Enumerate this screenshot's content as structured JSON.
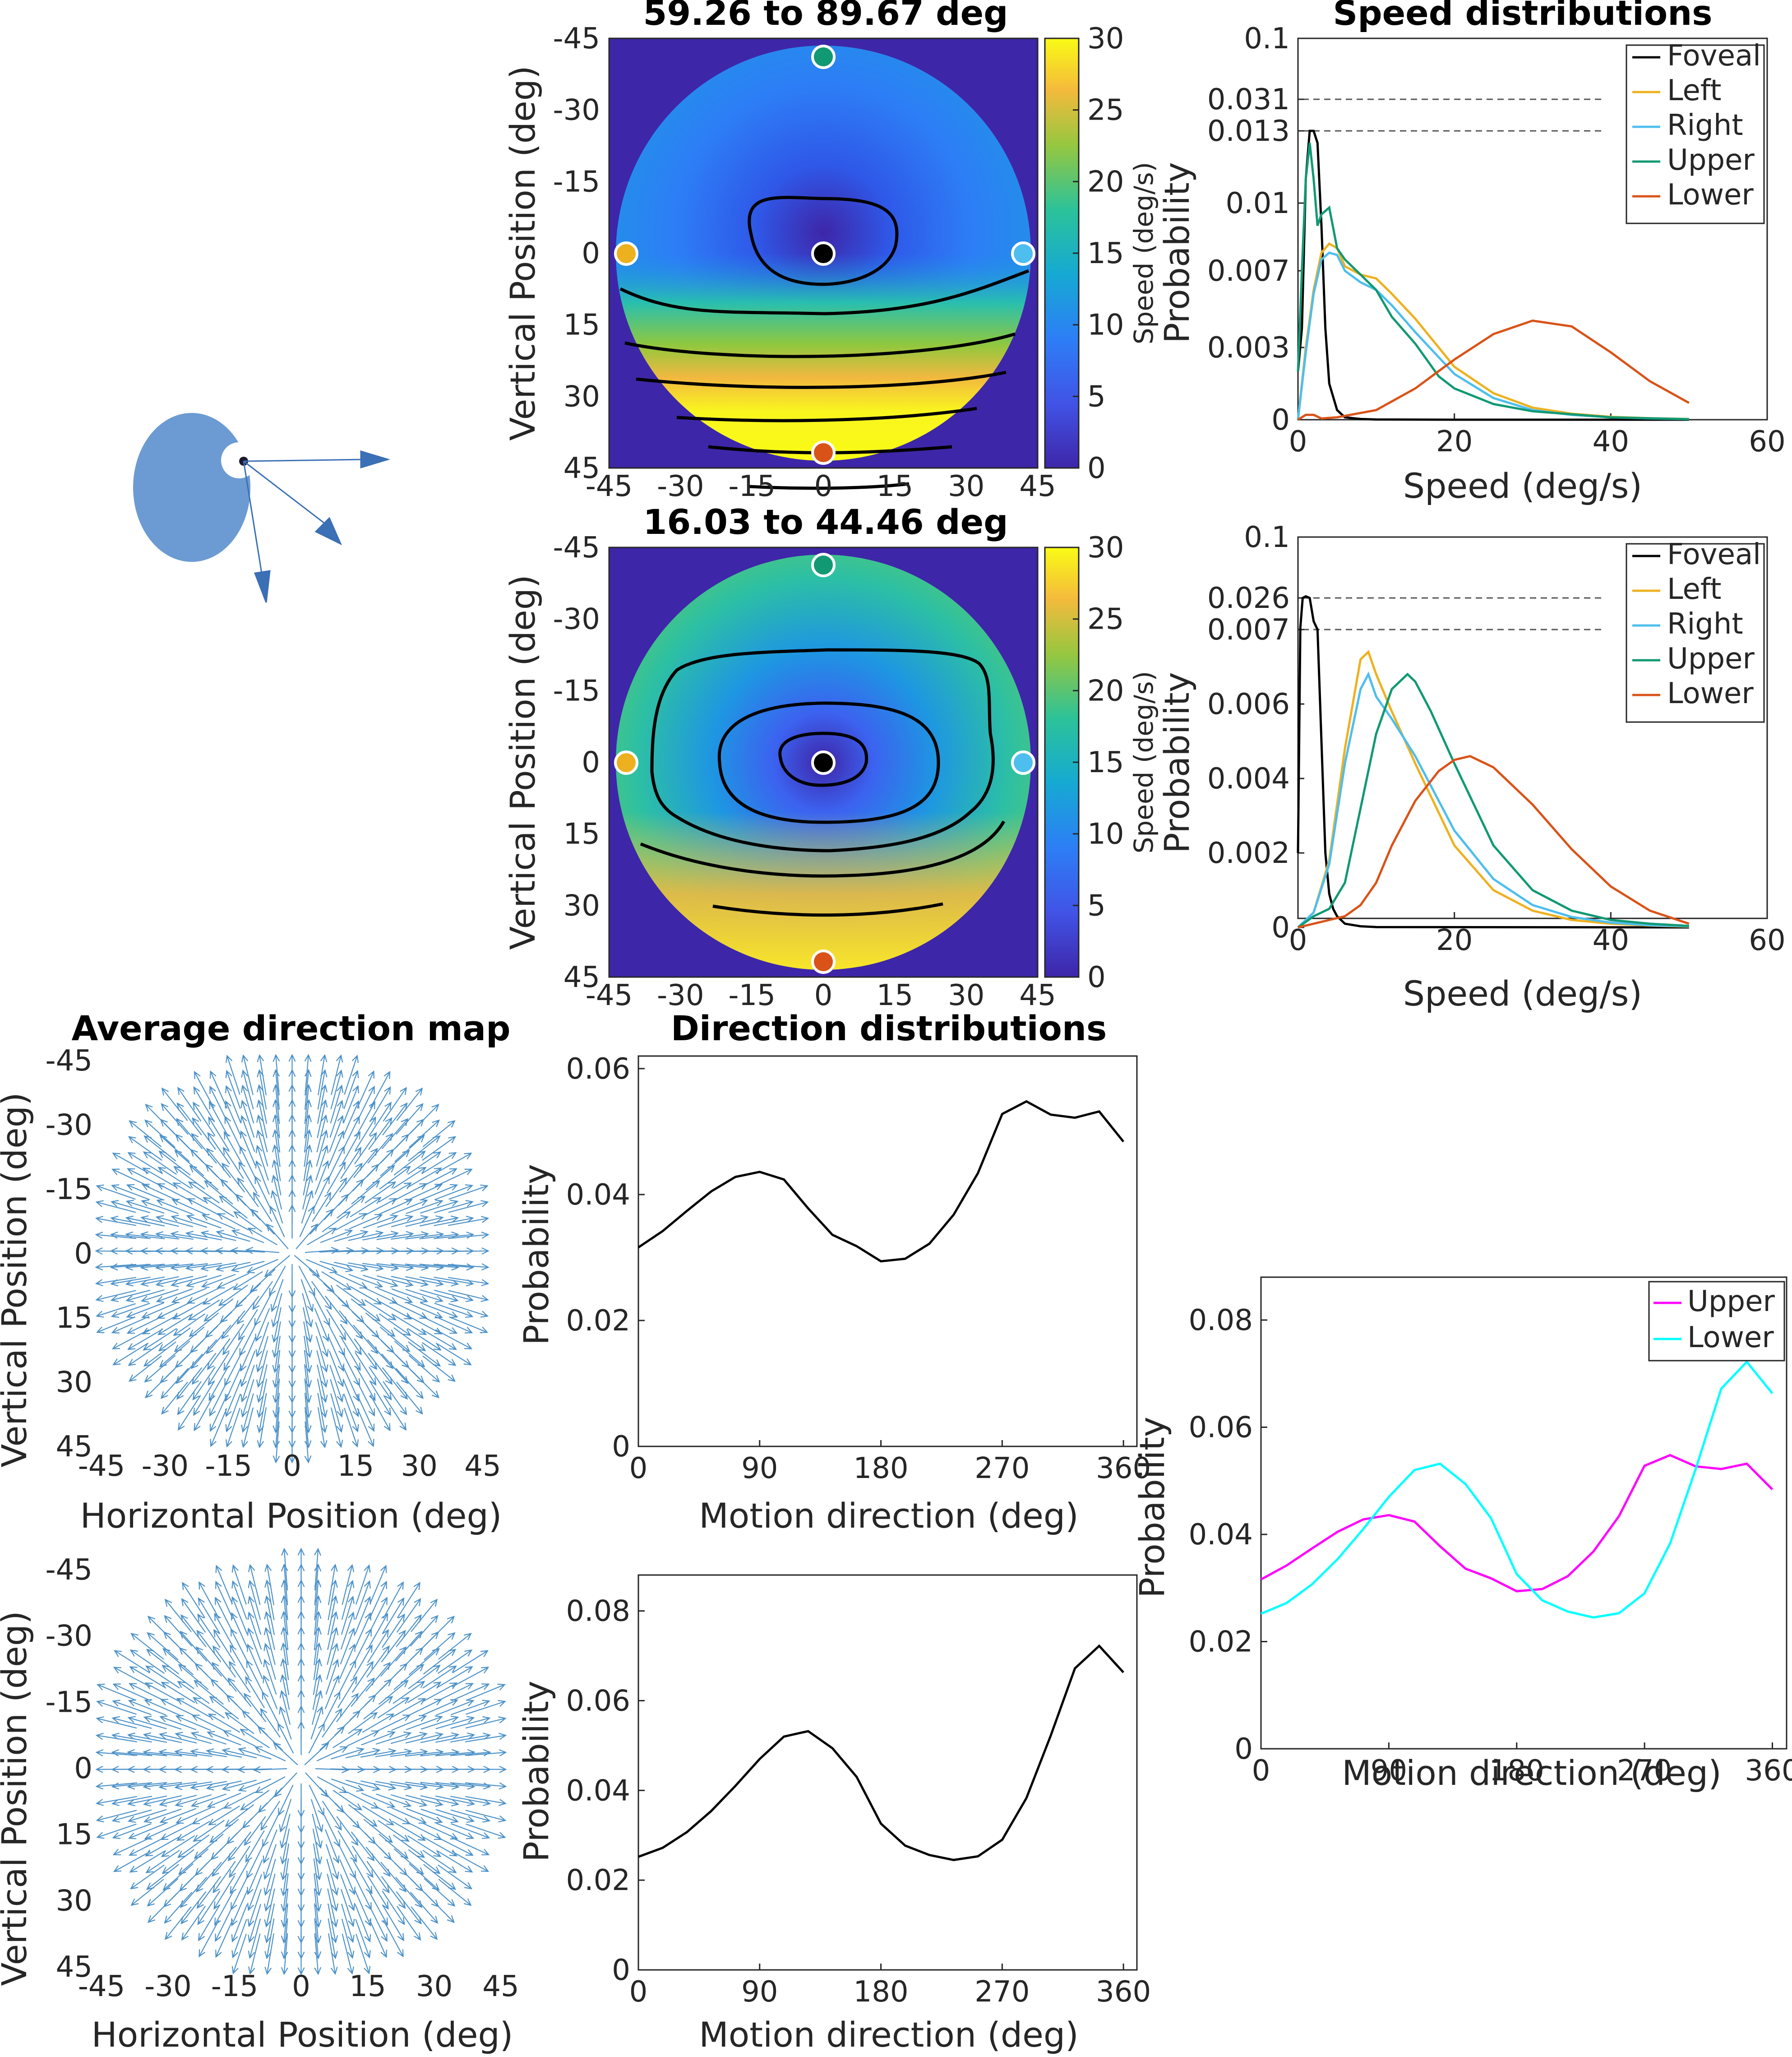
{
  "figure": {
    "speed_maps": {
      "titles": [
        "59.26 to 89.67 deg",
        "16.03 to 44.46 deg"
      ],
      "xticks": [
        "-45",
        "-30",
        "-15",
        "0",
        "15",
        "30",
        "45"
      ],
      "yticks": [
        "-45",
        "-30",
        "-15",
        "0",
        "15",
        "30",
        "45"
      ],
      "ylabel": "Vertical Position (deg)",
      "colorbar_label": "Speed (deg/s)",
      "colorbar_ticks": [
        "0",
        "5",
        "10",
        "15",
        "20",
        "25",
        "30"
      ],
      "colorbar_limits": [
        0,
        30
      ],
      "marker_colors": {
        "foveal": "#000000",
        "left": "#EDB120",
        "right": "#4DBEEE",
        "upper": "#119973",
        "lower": "#D95319"
      }
    },
    "speed_dist": {
      "title": "Speed distributions",
      "xlabel": "Speed (deg/s)",
      "ylabel": "Probability",
      "xticks": [
        "0",
        "20",
        "40",
        "60"
      ],
      "legend": [
        "Foveal",
        "Left",
        "Right",
        "Upper",
        "Lower"
      ],
      "top_yticks": [
        "0",
        "0.003",
        "0.007",
        "0.01",
        "0.013",
        "0.031",
        "0.1"
      ],
      "bottom_yticks": [
        "0",
        "0.002",
        "0.004",
        "0.006",
        "0.007",
        "0.026",
        "0.1"
      ]
    },
    "direction_map": {
      "title": "Average direction map",
      "xlabel": "Horizontal Position (deg)",
      "ylabel": "Vertical Position (deg)",
      "xticks": [
        "-45",
        "-30",
        "-15",
        "0",
        "15",
        "30",
        "45"
      ],
      "yticks": [
        "-45",
        "-30",
        "-15",
        "0",
        "15",
        "30",
        "45"
      ],
      "arrow_color": "#4A90C8"
    },
    "direction_dist": {
      "title": "Direction distributions",
      "xlabel": "Motion direction (deg)",
      "ylabel": "Probability",
      "xticks": [
        "0",
        "90",
        "180",
        "270",
        "360"
      ],
      "top_yticks": [
        "0",
        "0.02",
        "0.04",
        "0.06"
      ],
      "bottom_yticks": [
        "0",
        "0.02",
        "0.04",
        "0.06",
        "0.08"
      ]
    },
    "combined": {
      "xlabel": "Motion direction (deg)",
      "ylabel": "Probability",
      "xticks": [
        "0",
        "90",
        "180",
        "270",
        "360"
      ],
      "yticks": [
        "0",
        "0.02",
        "0.04",
        "0.06",
        "0.08"
      ],
      "legend": [
        "Upper",
        "Lower"
      ],
      "colors": [
        "#FF00FF",
        "#00FFFF"
      ]
    }
  },
  "chart_data": [
    {
      "type": "line",
      "title": "Speed distributions",
      "xlabel": "Speed (deg/s)",
      "ylabel": "Probability",
      "xlim": [
        0,
        60
      ],
      "y_scale": "piecewise (axis breaks)",
      "yticks": [
        0,
        0.003,
        0.007,
        0.01,
        0.013,
        0.031,
        0.1
      ],
      "legend_position": "top-right",
      "series": [
        {
          "name": "Foveal",
          "color": "#000000",
          "x": [
            0,
            0.5,
            1,
            1.5,
            2,
            2.5,
            3,
            3.5,
            4,
            5,
            6,
            8,
            10,
            20,
            50
          ],
          "y": [
            0.002,
            0.004,
            0.011,
            0.013,
            0.013,
            0.0125,
            0.009,
            0.004,
            0.0015,
            0.0004,
            0.0001,
            3e-05,
            1e-05,
            0,
            0
          ]
        },
        {
          "name": "Left",
          "color": "#EDB120",
          "x": [
            0,
            1,
            2,
            3,
            4,
            5,
            6,
            8,
            10,
            12,
            15,
            20,
            25,
            30,
            35,
            40,
            45,
            50
          ],
          "y": [
            0,
            0.003,
            0.006,
            0.0078,
            0.0082,
            0.008,
            0.0072,
            0.0068,
            0.0066,
            0.0058,
            0.0045,
            0.0022,
            0.0011,
            0.0005,
            0.00025,
            0.00012,
            6e-05,
            3e-05
          ]
        },
        {
          "name": "Right",
          "color": "#4DBEEE",
          "x": [
            0,
            1,
            2,
            3,
            4,
            5,
            6,
            8,
            10,
            12,
            15,
            20,
            25,
            30,
            35,
            40,
            45,
            50
          ],
          "y": [
            0,
            0.0028,
            0.0058,
            0.0075,
            0.0078,
            0.0077,
            0.007,
            0.0064,
            0.006,
            0.0052,
            0.0038,
            0.0019,
            0.0009,
            0.0004,
            0.0002,
            0.0001,
            5e-05,
            2e-05
          ]
        },
        {
          "name": "Upper",
          "color": "#119973",
          "x": [
            0,
            0.5,
            1,
            1.5,
            2,
            2.5,
            3,
            4,
            5,
            6,
            8,
            10,
            12,
            15,
            18,
            20,
            25,
            30,
            40,
            50
          ],
          "y": [
            0.002,
            0.007,
            0.011,
            0.0125,
            0.011,
            0.009,
            0.0095,
            0.0098,
            0.008,
            0.0075,
            0.0068,
            0.006,
            0.0046,
            0.0032,
            0.0018,
            0.0013,
            0.00065,
            0.00035,
            0.0001,
            2e-05
          ]
        },
        {
          "name": "Lower",
          "color": "#D95319",
          "x": [
            0,
            1,
            2,
            3,
            5,
            10,
            15,
            20,
            25,
            30,
            35,
            40,
            45,
            50
          ],
          "y": [
            0,
            0.0002,
            0.0002,
            5e-05,
            0.0001,
            0.0004,
            0.0013,
            0.0025,
            0.0037,
            0.0044,
            0.0041,
            0.0028,
            0.0016,
            0.0007
          ]
        }
      ]
    },
    {
      "type": "line",
      "xlabel": "Speed (deg/s)",
      "ylabel": "Probability",
      "xlim": [
        0,
        60
      ],
      "y_scale": "piecewise (axis breaks)",
      "yticks": [
        0,
        0.002,
        0.004,
        0.006,
        0.007,
        0.026,
        0.1
      ],
      "legend_position": "top-right",
      "series": [
        {
          "name": "Foveal",
          "color": "#000000",
          "x": [
            0,
            0.3,
            0.6,
            1,
            1.5,
            2,
            2.5,
            3,
            3.5,
            4,
            4.5,
            5,
            6,
            8,
            10,
            50
          ],
          "y": [
            0.002,
            0.008,
            0.026,
            0.028,
            0.026,
            0.012,
            0.007,
            0.005,
            0.002,
            0.0009,
            0.0005,
            0.0003,
            0.0001,
            3e-05,
            1e-05,
            0
          ]
        },
        {
          "name": "Left",
          "color": "#EDB120",
          "x": [
            0,
            2,
            4,
            6,
            8,
            9,
            10,
            12,
            15,
            20,
            25,
            30,
            35,
            40,
            45,
            50
          ],
          "y": [
            0,
            0.0004,
            0.0018,
            0.0048,
            0.0066,
            0.0067,
            0.0064,
            0.0058,
            0.0044,
            0.0022,
            0.001,
            0.00045,
            0.0002,
            0.0001,
            5e-05,
            2e-05
          ]
        },
        {
          "name": "Right",
          "color": "#4DBEEE",
          "x": [
            0,
            2,
            4,
            6,
            8,
            9,
            10,
            12,
            15,
            20,
            25,
            30,
            35,
            40,
            45,
            50
          ],
          "y": [
            0,
            0.0004,
            0.0017,
            0.0044,
            0.0062,
            0.0064,
            0.0061,
            0.0056,
            0.0046,
            0.0026,
            0.0013,
            0.0006,
            0.00028,
            0.00013,
            6e-05,
            3e-05
          ]
        },
        {
          "name": "Upper",
          "color": "#119973",
          "x": [
            0,
            2,
            4,
            6,
            8,
            10,
            12,
            14,
            15,
            17,
            20,
            25,
            30,
            35,
            40,
            45,
            50
          ],
          "y": [
            0,
            0.0003,
            0.0005,
            0.0012,
            0.0032,
            0.0052,
            0.0062,
            0.0064,
            0.0063,
            0.0058,
            0.0044,
            0.0022,
            0.001,
            0.00045,
            0.0002,
            0.0001,
            4e-05
          ]
        },
        {
          "name": "Lower",
          "color": "#D95319",
          "x": [
            0,
            2,
            4,
            6,
            8,
            10,
            12,
            15,
            18,
            20,
            22,
            25,
            30,
            35,
            40,
            45,
            50
          ],
          "y": [
            0,
            0.0001,
            0.0002,
            0.0003,
            0.0006,
            0.0012,
            0.0022,
            0.0034,
            0.0042,
            0.0045,
            0.0046,
            0.0043,
            0.0033,
            0.0021,
            0.0011,
            0.00045,
            0.0001
          ]
        }
      ]
    },
    {
      "type": "line",
      "title": "Direction distributions",
      "xlabel": "Motion direction (deg)",
      "ylabel": "Probability",
      "xlim": [
        0,
        370
      ],
      "ylim": [
        0,
        0.062
      ],
      "series": [
        {
          "color": "#000000",
          "x": [
            0,
            18,
            36,
            54,
            72,
            90,
            108,
            126,
            144,
            162,
            180,
            198,
            216,
            234,
            252,
            270,
            288,
            306,
            324,
            342,
            360
          ],
          "y": [
            0.0316,
            0.0342,
            0.0374,
            0.0405,
            0.0428,
            0.0436,
            0.0424,
            0.0378,
            0.0336,
            0.0318,
            0.0294,
            0.0298,
            0.0322,
            0.0368,
            0.0434,
            0.0528,
            0.0548,
            0.0527,
            0.0522,
            0.0532,
            0.0484
          ]
        }
      ]
    },
    {
      "type": "line",
      "xlabel": "Motion direction (deg)",
      "ylabel": "Probability",
      "xlim": [
        0,
        370
      ],
      "ylim": [
        0,
        0.088
      ],
      "series": [
        {
          "color": "#000000",
          "x": [
            0,
            18,
            36,
            54,
            72,
            90,
            108,
            126,
            144,
            162,
            180,
            198,
            216,
            234,
            252,
            270,
            288,
            306,
            324,
            342,
            360
          ],
          "y": [
            0.0252,
            0.0272,
            0.0307,
            0.0354,
            0.041,
            0.047,
            0.052,
            0.0532,
            0.0494,
            0.043,
            0.0326,
            0.0277,
            0.0256,
            0.0245,
            0.0253,
            0.029,
            0.0383,
            0.0522,
            0.0672,
            0.0722,
            0.0663
          ]
        }
      ]
    },
    {
      "type": "line",
      "xlabel": "Motion direction (deg)",
      "ylabel": "Probability",
      "xlim": [
        0,
        370
      ],
      "ylim": [
        0,
        0.088
      ],
      "legend_position": "top-right",
      "series": [
        {
          "name": "Upper",
          "color": "#FF00FF",
          "x": [
            0,
            18,
            36,
            54,
            72,
            90,
            108,
            126,
            144,
            162,
            180,
            198,
            216,
            234,
            252,
            270,
            288,
            306,
            324,
            342,
            360
          ],
          "y": [
            0.0316,
            0.0342,
            0.0374,
            0.0405,
            0.0428,
            0.0436,
            0.0424,
            0.0378,
            0.0336,
            0.0318,
            0.0294,
            0.0298,
            0.0322,
            0.0368,
            0.0434,
            0.0528,
            0.0548,
            0.0527,
            0.0522,
            0.0532,
            0.0484
          ]
        },
        {
          "name": "Lower",
          "color": "#00FFFF",
          "x": [
            0,
            18,
            36,
            54,
            72,
            90,
            108,
            126,
            144,
            162,
            180,
            198,
            216,
            234,
            252,
            270,
            288,
            306,
            324,
            342,
            360
          ],
          "y": [
            0.0252,
            0.0272,
            0.0307,
            0.0354,
            0.041,
            0.047,
            0.052,
            0.0532,
            0.0494,
            0.043,
            0.0326,
            0.0277,
            0.0256,
            0.0245,
            0.0253,
            0.029,
            0.0383,
            0.0522,
            0.0672,
            0.0722,
            0.0663
          ]
        }
      ]
    }
  ]
}
